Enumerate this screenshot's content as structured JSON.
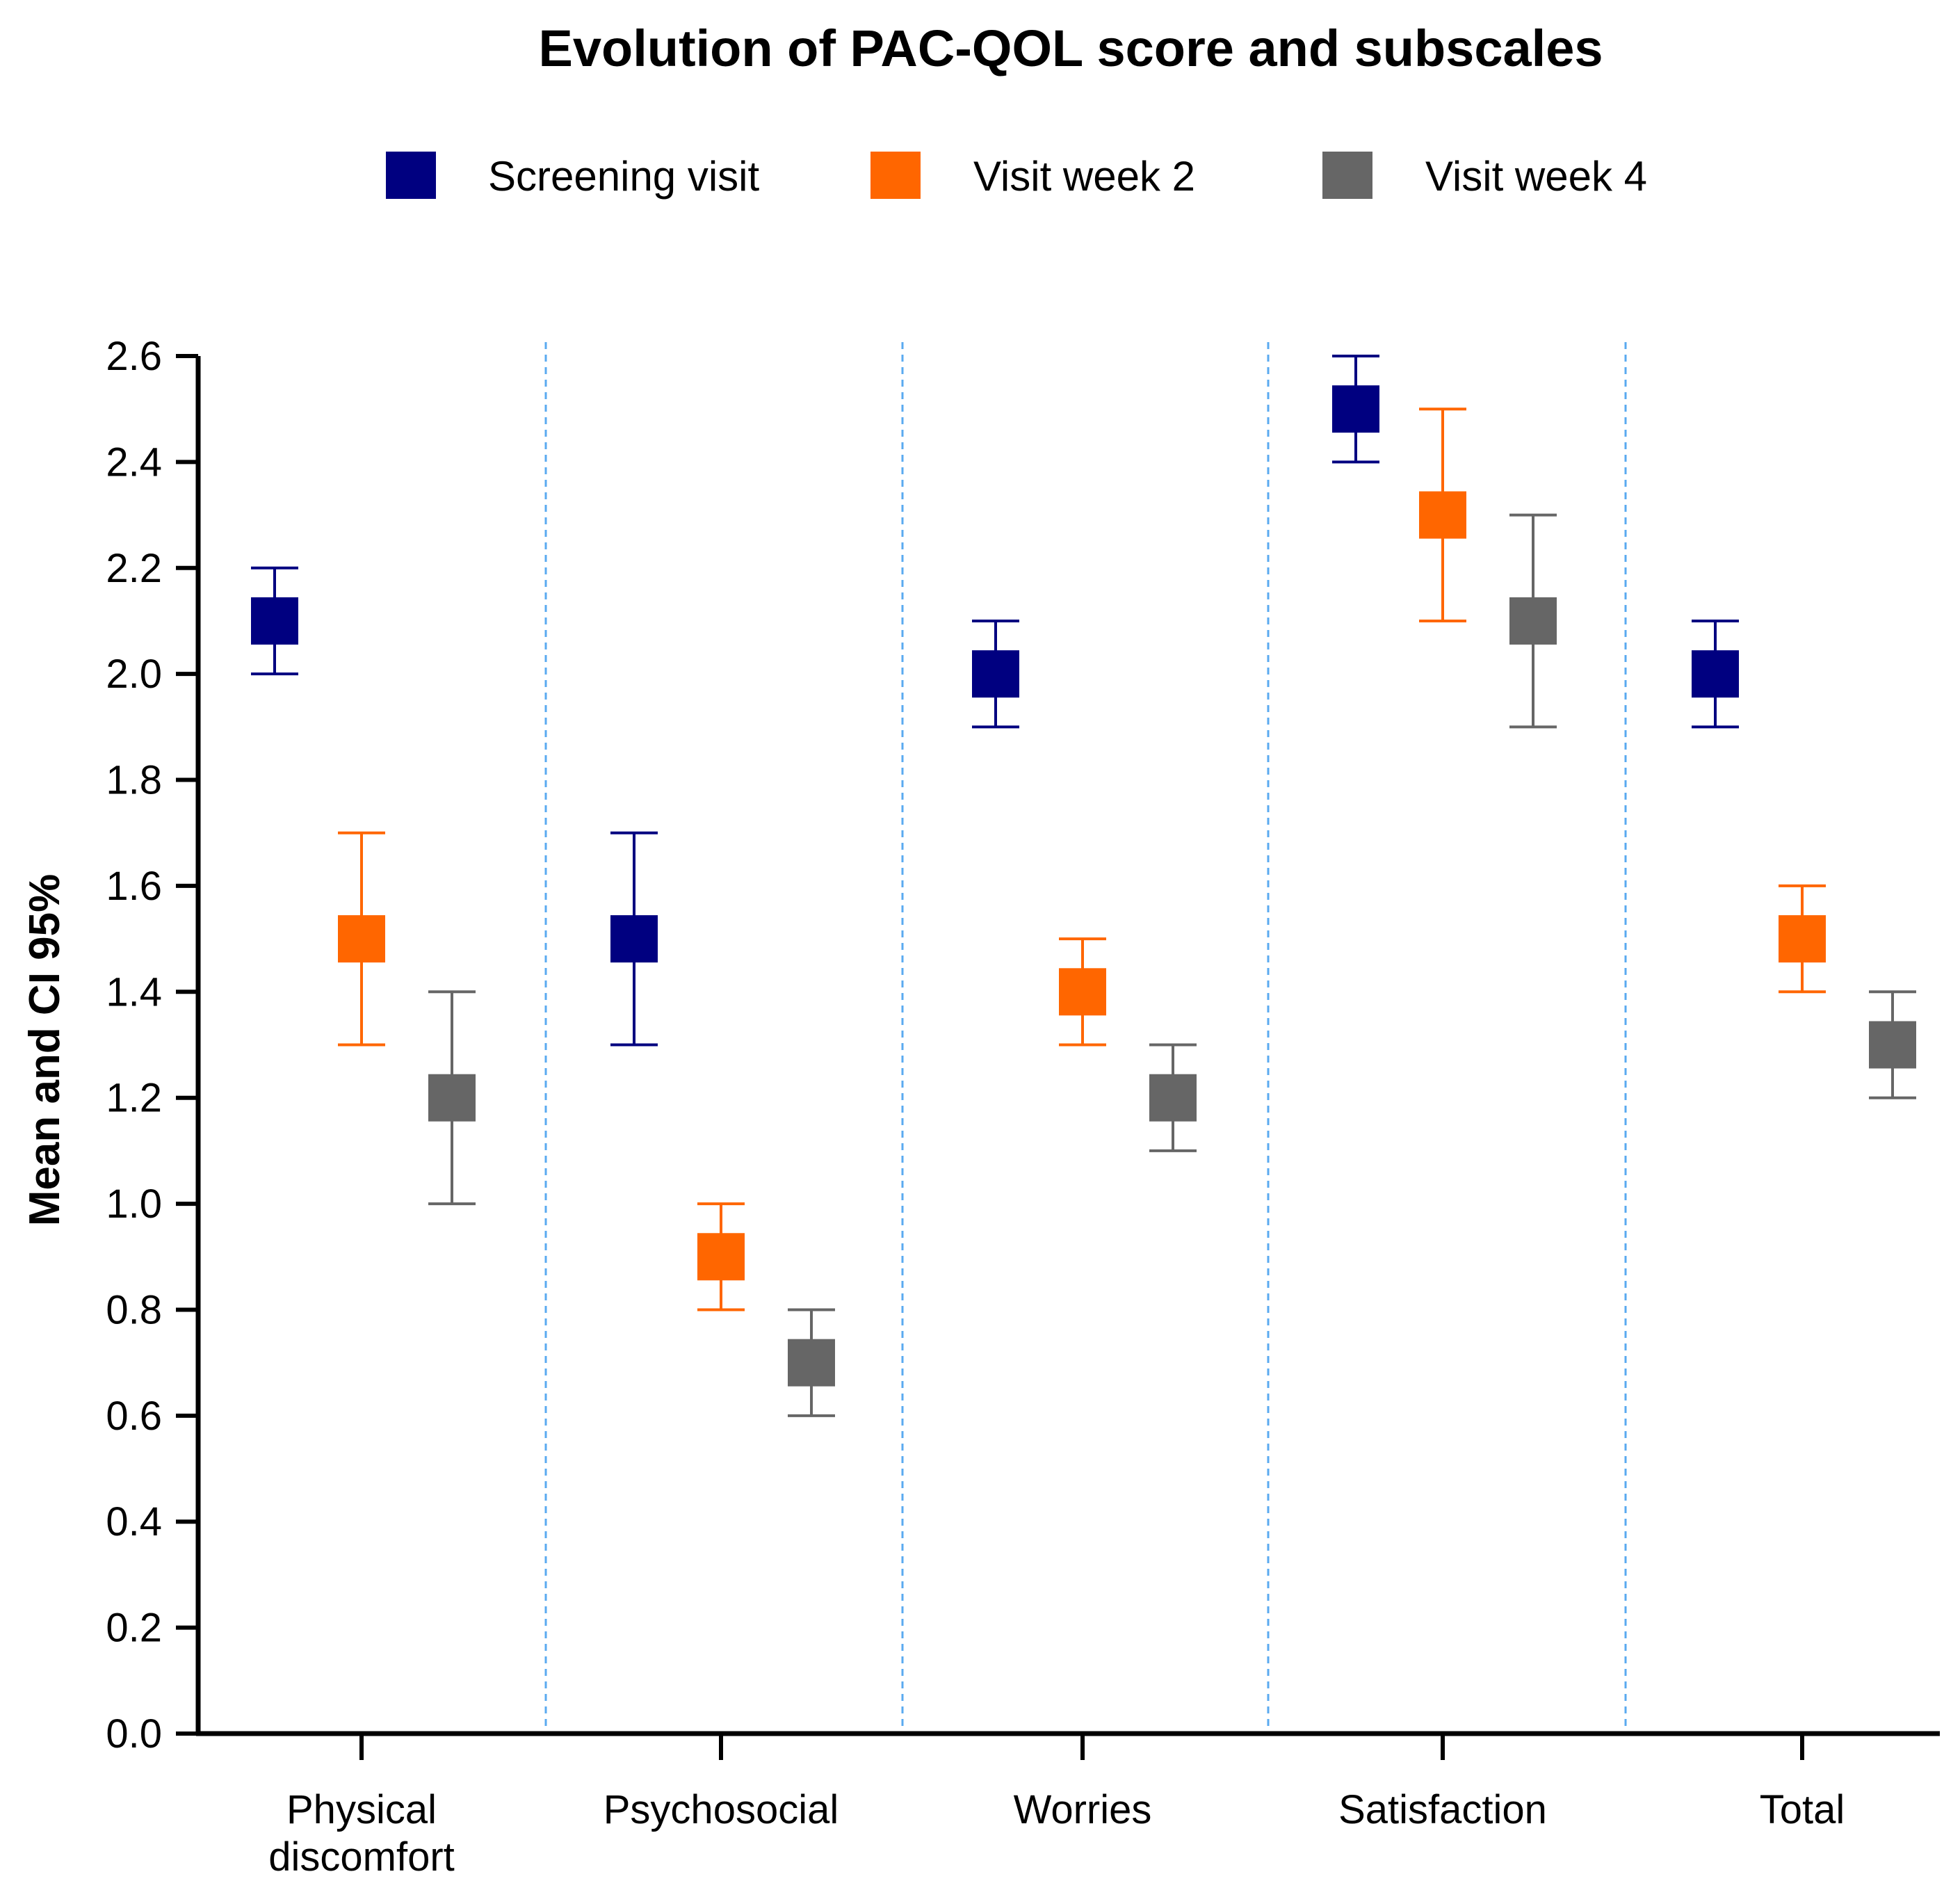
{
  "chart_data": {
    "type": "scatter",
    "title": "Evolution of PAC-QOL score and subscales",
    "xlabel": "",
    "ylabel": "Mean and CI 95%",
    "ylim": [
      0,
      2.6
    ],
    "yticks": [
      0.0,
      0.2,
      0.4,
      0.6,
      0.8,
      1.0,
      1.2,
      1.4,
      1.6,
      1.8,
      2.0,
      2.2,
      2.4,
      2.6
    ],
    "ytick_labels": [
      "0.0",
      "0.2",
      "0.4",
      "0.6",
      "0.8",
      "1.0",
      "1.2",
      "1.4",
      "1.6",
      "1.8",
      "2.0",
      "2.2",
      "2.4",
      "2.6"
    ],
    "categories": [
      [
        "Physical",
        "discomfort"
      ],
      [
        "Psychosocial"
      ],
      [
        "Worries"
      ],
      [
        "Satisfaction"
      ],
      [
        "Total"
      ]
    ],
    "legend_position": "top",
    "separators": "dashed vertical lines between categories",
    "series": [
      {
        "name": "Screening visit",
        "color": "#000080",
        "values": [
          2.1,
          1.5,
          2.0,
          2.5,
          2.0
        ],
        "ci_low": [
          2.0,
          1.3,
          1.9,
          2.4,
          1.9
        ],
        "ci_high": [
          2.2,
          1.7,
          2.1,
          2.6,
          2.1
        ]
      },
      {
        "name": "Visit week 2",
        "color": "#FF6600",
        "values": [
          1.5,
          0.9,
          1.4,
          2.3,
          1.5
        ],
        "ci_low": [
          1.3,
          0.8,
          1.3,
          2.1,
          1.4
        ],
        "ci_high": [
          1.7,
          1.0,
          1.5,
          2.5,
          1.6
        ]
      },
      {
        "name": "Visit week 4",
        "color": "#666666",
        "values": [
          1.2,
          0.7,
          1.2,
          2.1,
          1.3
        ],
        "ci_low": [
          1.0,
          0.6,
          1.1,
          1.9,
          1.2
        ],
        "ci_high": [
          1.4,
          0.8,
          1.3,
          2.3,
          1.4
        ]
      }
    ],
    "separator_color": "#5AAAF0",
    "axis_color": "#000000"
  }
}
